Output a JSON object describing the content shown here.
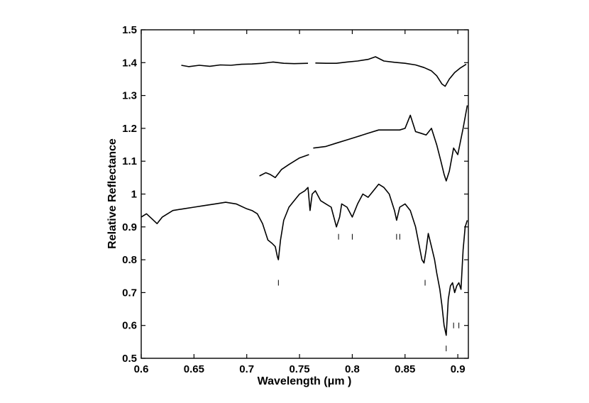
{
  "chart_data": {
    "type": "line",
    "title": "",
    "xlabel": "Wavelength (μm )",
    "ylabel": "Relative Reflectance",
    "xlim": [
      0.6,
      0.91
    ],
    "ylim": [
      0.5,
      1.5
    ],
    "xticks": [
      "0.6",
      "0.65",
      "0.7",
      "0.75",
      "0.8",
      "0.85",
      "0.9"
    ],
    "yticks": [
      "0.5",
      "0.6",
      "0.7",
      "0.8",
      "0.9",
      "1",
      "1.1",
      "1.2",
      "1.3",
      "1.4",
      "1.5"
    ],
    "grid": false,
    "legend": "none",
    "series": [
      {
        "x": [
          0.638,
          0.645,
          0.655,
          0.665,
          0.675,
          0.685,
          0.695,
          0.705,
          0.715,
          0.725,
          0.735,
          0.745,
          0.758
        ],
        "y": [
          1.392,
          1.388,
          1.392,
          1.389,
          1.393,
          1.392,
          1.395,
          1.396,
          1.398,
          1.402,
          1.398,
          1.397,
          1.398
        ]
      },
      {
        "x": [
          0.765,
          0.775,
          0.785,
          0.795,
          0.805,
          0.815,
          0.822,
          0.83,
          0.84,
          0.85,
          0.86,
          0.868,
          0.875,
          0.88,
          0.885,
          0.888,
          0.892,
          0.897,
          0.902,
          0.908
        ],
        "y": [
          1.399,
          1.398,
          1.398,
          1.402,
          1.405,
          1.41,
          1.418,
          1.405,
          1.401,
          1.398,
          1.393,
          1.385,
          1.375,
          1.36,
          1.335,
          1.328,
          1.35,
          1.37,
          1.383,
          1.395
        ]
      },
      {
        "x": [
          0.712,
          0.718,
          0.722,
          0.727,
          0.733,
          0.74,
          0.75,
          0.759
        ],
        "y": [
          1.055,
          1.065,
          1.06,
          1.05,
          1.075,
          1.09,
          1.11,
          1.12
        ]
      },
      {
        "x": [
          0.763,
          0.775,
          0.785,
          0.795,
          0.805,
          0.815,
          0.825,
          0.835,
          0.845,
          0.85,
          0.855,
          0.86,
          0.865,
          0.87,
          0.875,
          0.88,
          0.884,
          0.887,
          0.889,
          0.892,
          0.896,
          0.9,
          0.905,
          0.909
        ],
        "y": [
          1.14,
          1.145,
          1.155,
          1.165,
          1.175,
          1.185,
          1.195,
          1.195,
          1.195,
          1.2,
          1.24,
          1.19,
          1.185,
          1.18,
          1.2,
          1.15,
          1.1,
          1.06,
          1.04,
          1.07,
          1.14,
          1.12,
          1.2,
          1.27
        ]
      },
      {
        "x": [
          0.6,
          0.605,
          0.61,
          0.615,
          0.62,
          0.63,
          0.64,
          0.65,
          0.66,
          0.67,
          0.68,
          0.69,
          0.7,
          0.705,
          0.71,
          0.715,
          0.72,
          0.724,
          0.727,
          0.729,
          0.73,
          0.732,
          0.735,
          0.74,
          0.745,
          0.75,
          0.755,
          0.758,
          0.76,
          0.762,
          0.765,
          0.77,
          0.775,
          0.78,
          0.785,
          0.788,
          0.79,
          0.795,
          0.8,
          0.805,
          0.81,
          0.815,
          0.82,
          0.825,
          0.83,
          0.835,
          0.84,
          0.842,
          0.845,
          0.85,
          0.855,
          0.86,
          0.863,
          0.866,
          0.868,
          0.87,
          0.872,
          0.875,
          0.878,
          0.88,
          0.883,
          0.885,
          0.887,
          0.889,
          0.891,
          0.893,
          0.895,
          0.897,
          0.899,
          0.901,
          0.903,
          0.905,
          0.907,
          0.909
        ],
        "y": [
          0.93,
          0.94,
          0.925,
          0.91,
          0.93,
          0.95,
          0.955,
          0.96,
          0.965,
          0.97,
          0.975,
          0.97,
          0.955,
          0.95,
          0.94,
          0.91,
          0.86,
          0.85,
          0.84,
          0.81,
          0.8,
          0.86,
          0.92,
          0.96,
          0.98,
          1.0,
          1.01,
          1.02,
          0.95,
          1.0,
          1.01,
          0.98,
          0.97,
          0.96,
          0.9,
          0.93,
          0.97,
          0.96,
          0.93,
          0.97,
          1.0,
          0.99,
          1.01,
          1.03,
          1.02,
          1.0,
          0.95,
          0.92,
          0.96,
          0.97,
          0.95,
          0.9,
          0.85,
          0.8,
          0.79,
          0.83,
          0.88,
          0.84,
          0.8,
          0.76,
          0.71,
          0.66,
          0.6,
          0.57,
          0.68,
          0.72,
          0.73,
          0.7,
          0.72,
          0.73,
          0.71,
          0.83,
          0.9,
          0.92
        ]
      }
    ],
    "feature_markers": [
      {
        "x": 0.73,
        "y": 0.73
      },
      {
        "x": 0.787,
        "y": 0.87
      },
      {
        "x": 0.8,
        "y": 0.87
      },
      {
        "x": 0.842,
        "y": 0.87
      },
      {
        "x": 0.845,
        "y": 0.87
      },
      {
        "x": 0.869,
        "y": 0.73
      },
      {
        "x": 0.889,
        "y": 0.53
      },
      {
        "x": 0.896,
        "y": 0.6
      },
      {
        "x": 0.901,
        "y": 0.6
      }
    ]
  }
}
